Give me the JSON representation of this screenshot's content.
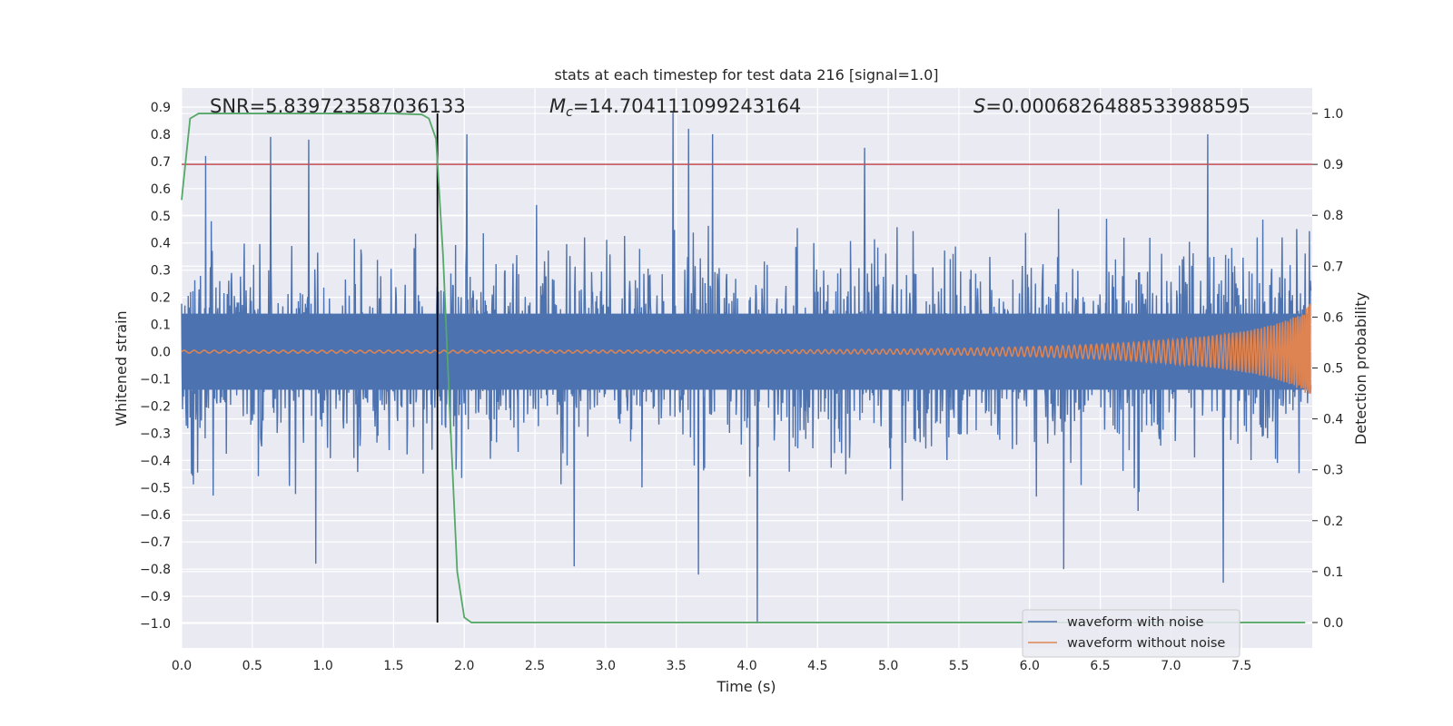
{
  "chart_data": {
    "type": "line",
    "title": "stats at each timestep for test data 216 [signal=1.0]",
    "xlabel": "Time (s)",
    "ylabel": "Whitened strain",
    "y2label": "Detection probability",
    "xlim": [
      0.0,
      8.0
    ],
    "ylim": [
      -1.09,
      0.97
    ],
    "y2lim": [
      -0.05,
      1.05
    ],
    "x_ticks": [
      0.0,
      0.5,
      1.0,
      1.5,
      2.0,
      2.5,
      3.0,
      3.5,
      4.0,
      4.5,
      5.0,
      5.5,
      6.0,
      6.5,
      7.0,
      7.5
    ],
    "x_tick_labels": [
      "0.0",
      "0.5",
      "1.0",
      "1.5",
      "2.0",
      "2.5",
      "3.0",
      "3.5",
      "4.0",
      "4.5",
      "5.0",
      "5.5",
      "6.0",
      "6.5",
      "7.0",
      "7.5"
    ],
    "y_ticks": [
      0.9,
      0.8,
      0.7,
      0.6,
      0.5,
      0.4,
      0.3,
      0.2,
      0.1,
      0.0,
      -0.1,
      -0.2,
      -0.3,
      -0.4,
      -0.5,
      -0.6,
      -0.7,
      -0.8,
      -0.9,
      -1.0
    ],
    "y_tick_labels": [
      "0.9",
      "0.8",
      "0.7",
      "0.6",
      "0.5",
      "0.4",
      "0.3",
      "0.2",
      "0.1",
      "0.0",
      "−0.1",
      "−0.2",
      "−0.3",
      "−0.4",
      "−0.5",
      "−0.6",
      "−0.7",
      "−0.8",
      "−0.9",
      "−1.0"
    ],
    "y2_ticks": [
      1.0,
      0.9,
      0.8,
      0.7,
      0.6,
      0.5,
      0.4,
      0.3,
      0.2,
      0.1,
      0.0
    ],
    "y2_tick_labels": [
      "1.0",
      "0.9",
      "0.8",
      "0.7",
      "0.6",
      "0.5",
      "0.4",
      "0.3",
      "0.2",
      "0.1",
      "0.0"
    ],
    "grid": true,
    "legend_position": "lower-right",
    "annotations": {
      "snr": "SNR=5.839723587036133",
      "mc_symbol": "M",
      "mc_sub": "c",
      "mc_value": "=14.704111099243164",
      "s_symbol": "S",
      "s_value": "=0.0006826488533988595"
    },
    "threshold_y2": 0.9,
    "detection_time": 1.81,
    "series": [
      {
        "name": "waveform with noise",
        "axis": "left",
        "color": "#4c72b0",
        "kind": "noise",
        "sample_rate": 2048,
        "duration": 8.0,
        "amplitude_range": [
          -1.0,
          0.88
        ],
        "notable_peaks": [
          {
            "x": 0.17,
            "y": 0.72
          },
          {
            "x": 0.63,
            "y": 0.79
          },
          {
            "x": 0.9,
            "y": 0.78
          },
          {
            "x": 2.02,
            "y": 0.8
          },
          {
            "x": 3.48,
            "y": 0.88
          },
          {
            "x": 3.59,
            "y": 0.82
          },
          {
            "x": 3.76,
            "y": 0.8
          },
          {
            "x": 4.84,
            "y": 0.75
          },
          {
            "x": 7.27,
            "y": 0.8
          },
          {
            "x": 0.95,
            "y": -0.78
          },
          {
            "x": 2.78,
            "y": -0.79
          },
          {
            "x": 3.66,
            "y": -0.82
          },
          {
            "x": 4.08,
            "y": -1.0
          },
          {
            "x": 6.25,
            "y": -0.8
          },
          {
            "x": 7.38,
            "y": -0.85
          }
        ]
      },
      {
        "name": "waveform without noise",
        "axis": "left",
        "color": "#dd8452",
        "kind": "chirp",
        "amplitude_start": 0.005,
        "amplitude_end": 0.19,
        "amplitude_end_min": -0.22
      },
      {
        "name": "",
        "axis": "right",
        "color": "#55a868",
        "kind": "probability",
        "x": [
          0.0,
          0.06,
          0.12,
          0.2,
          0.5,
          1.0,
          1.5,
          1.7,
          1.75,
          1.8,
          1.85,
          1.9,
          1.95,
          2.0,
          2.05,
          2.1,
          3.0,
          5.0,
          7.0,
          7.95
        ],
        "values": [
          0.83,
          0.99,
          1.0,
          1.0,
          1.0,
          1.0,
          1.0,
          0.998,
          0.99,
          0.95,
          0.72,
          0.4,
          0.1,
          0.01,
          0.0,
          0.0,
          0.0,
          0.0,
          0.0,
          0.0
        ]
      }
    ],
    "colors": {
      "plot_bg": "#eaeaf2",
      "grid": "#ffffff",
      "threshold": "#c44e52",
      "detection_marker": "#000000"
    }
  }
}
